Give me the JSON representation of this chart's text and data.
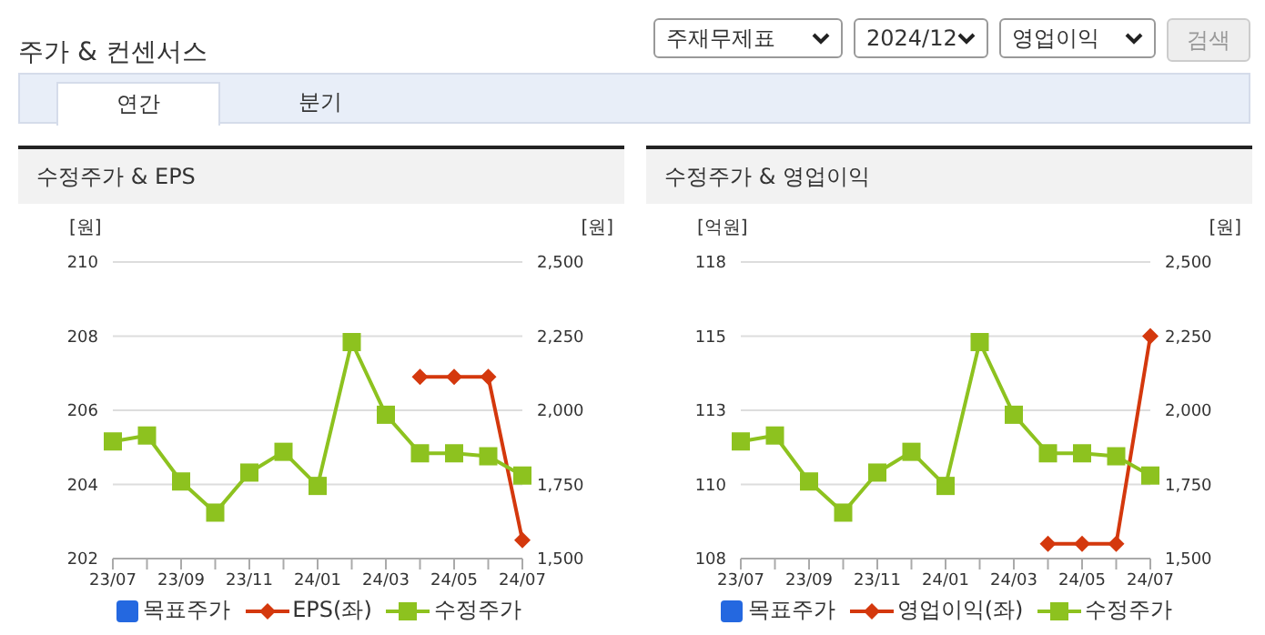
{
  "chart_data": [
    {
      "type": "other",
      "title": "주가 & 컨센서스",
      "annotations": [
        "주재무제표",
        "2024/12",
        "영업이익",
        "검색",
        "연간",
        "분기"
      ]
    },
    {
      "type": "line",
      "title": "수정주가 & EPS",
      "ylabel": "[원]",
      "y2label": "[원]",
      "categories": [
        "23/07",
        null,
        "23/09",
        null,
        "23/11",
        null,
        "24/01",
        null,
        "24/03",
        null,
        "24/05",
        null,
        "24/07"
      ],
      "series": [
        {
          "name": "목표주가",
          "color": "#2468e0",
          "marker": "square",
          "values": [
            null,
            null,
            null,
            null,
            null,
            null,
            null,
            null,
            null,
            null,
            null,
            null,
            null
          ]
        },
        {
          "name": "EPS(좌)",
          "color": "#d4380d",
          "marker": "diamond",
          "values": [
            null,
            null,
            null,
            null,
            null,
            null,
            null,
            null,
            null,
            206.9,
            206.9,
            206.9,
            202.5
          ]
        },
        {
          "name": "수정주가",
          "color": "#8dc21f",
          "marker": "square",
          "axis": "y2",
          "values": [
            1895,
            1915,
            1760,
            1655,
            1790,
            1860,
            1745,
            2230,
            1985,
            1855,
            1855,
            1845,
            1780
          ]
        }
      ],
      "ylim": [
        202,
        210
      ],
      "yticks": [
        202,
        204,
        206,
        208,
        210
      ],
      "y2lim": [
        1500,
        2500
      ],
      "y2ticks": [
        {
          "value": 1500,
          "label": "1,500"
        },
        {
          "value": 1750,
          "label": "1,750"
        },
        {
          "value": 2000,
          "label": "2,000"
        },
        {
          "value": 2250,
          "label": "2,250"
        },
        {
          "value": 2500,
          "label": "2,500"
        }
      ],
      "grid": "y",
      "legend": "bottom"
    },
    {
      "type": "line",
      "title": "수정주가 & 영업이익",
      "ylabel": "[억원]",
      "y2label": "[원]",
      "categories": [
        "23/07",
        null,
        "23/09",
        null,
        "23/11",
        null,
        "24/01",
        null,
        "24/03",
        null,
        "24/05",
        null,
        "24/07"
      ],
      "series": [
        {
          "name": "목표주가",
          "color": "#2468e0",
          "marker": "square",
          "values": [
            null,
            null,
            null,
            null,
            null,
            null,
            null,
            null,
            null,
            null,
            null,
            null,
            null
          ]
        },
        {
          "name": "영업이익(좌)",
          "color": "#d4380d",
          "marker": "diamond",
          "values": [
            null,
            null,
            null,
            null,
            null,
            null,
            null,
            null,
            null,
            108,
            108,
            108,
            115
          ]
        },
        {
          "name": "수정주가",
          "color": "#8dc21f",
          "marker": "square",
          "axis": "y2",
          "values": [
            1895,
            1915,
            1760,
            1655,
            1790,
            1860,
            1745,
            2230,
            1985,
            1855,
            1855,
            1845,
            1780
          ]
        }
      ],
      "ylim": [
        107.5,
        117.5
      ],
      "yticks": [
        {
          "value": 107.5,
          "label": "108"
        },
        {
          "value": 110,
          "label": "110"
        },
        {
          "value": 112.5,
          "label": "113"
        },
        {
          "value": 115,
          "label": "115"
        },
        {
          "value": 117.5,
          "label": "118"
        }
      ],
      "y2lim": [
        1500,
        2500
      ],
      "y2ticks": [
        {
          "value": 1500,
          "label": "1,500"
        },
        {
          "value": 1750,
          "label": "1,750"
        },
        {
          "value": 2000,
          "label": "2,000"
        },
        {
          "value": 2250,
          "label": "2,250"
        },
        {
          "value": 2500,
          "label": "2,500"
        }
      ],
      "grid": "y",
      "legend": "bottom"
    }
  ]
}
